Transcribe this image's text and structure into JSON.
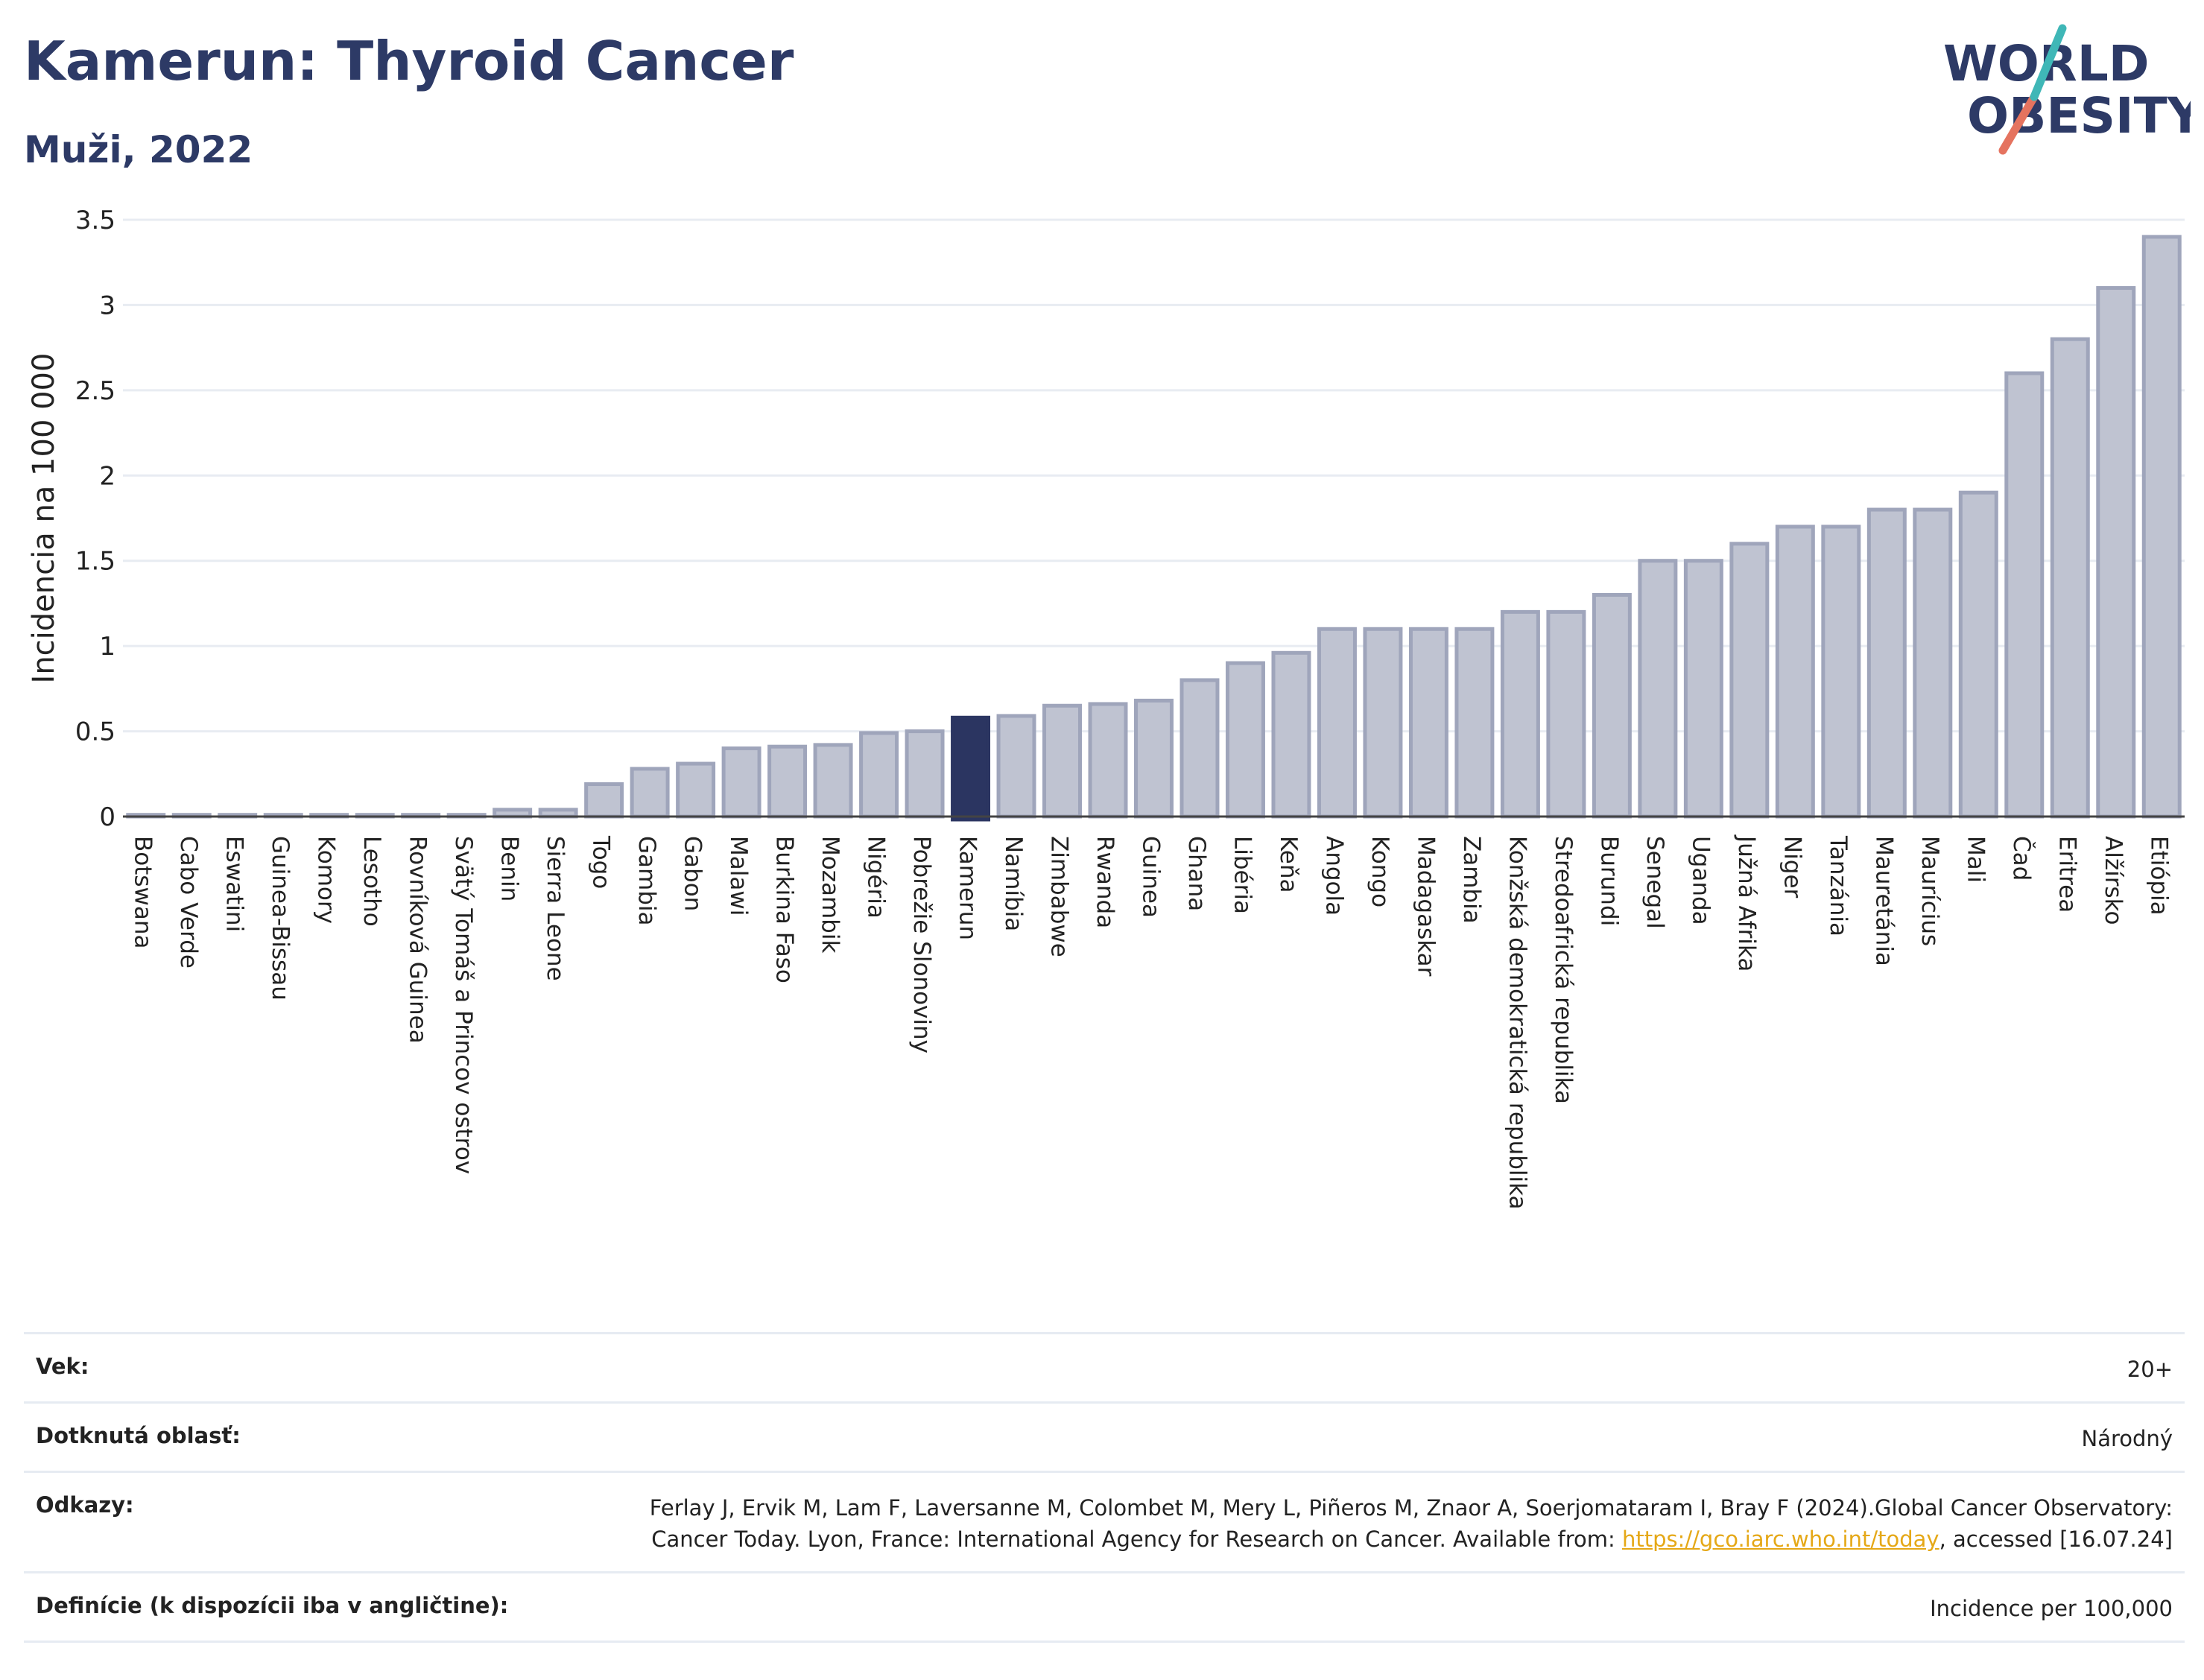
{
  "header": {
    "title": "Kamerun: Thyroid Cancer",
    "subtitle": "Muži, 2022",
    "logo_line1": "WORLD",
    "logo_line2": "OBESITY"
  },
  "chart_data": {
    "type": "bar",
    "title": "Kamerun: Thyroid Cancer",
    "subtitle": "Muži, 2022",
    "ylabel": "Incidencia na 100 000",
    "xlabel": "",
    "ylim": [
      0,
      3.5
    ],
    "yticks": [
      "0",
      "0.5",
      "1",
      "1.5",
      "2",
      "2.5",
      "3",
      "3.5"
    ],
    "highlight": "Kamerun",
    "colors": {
      "bar": "#bfc3d1",
      "bar_edge": "#9fa5bb",
      "highlight": "#2b3561",
      "grid": "#e8ecf2"
    },
    "categories": [
      "Botswana",
      "Cabo Verde",
      "Eswatini",
      "Guinea-Bissau",
      "Komory",
      "Lesotho",
      "Rovníková Guinea",
      "Svätý Tomáš a Princov ostrov",
      "Benin",
      "Sierra Leone",
      "Togo",
      "Gambia",
      "Gabon",
      "Malawi",
      "Burkina Faso",
      "Mozambik",
      "Nigéria",
      "Pobrežie Slonoviny",
      "Kamerun",
      "Namíbia",
      "Zimbabwe",
      "Rwanda",
      "Guinea",
      "Ghana",
      "Libéria",
      "Keňa",
      "Angola",
      "Kongo",
      "Madagaskar",
      "Zambia",
      "Konžská demokratická republika",
      "Stredoafrická republika",
      "Burundi",
      "Senegal",
      "Uganda",
      "Južná Afrika",
      "Niger",
      "Tanzánia",
      "Mauretánia",
      "Maurícius",
      "Mali",
      "Čad",
      "Eritrea",
      "Alžírsko",
      "Etiópia"
    ],
    "values": [
      0.01,
      0.01,
      0.01,
      0.01,
      0.01,
      0.01,
      0.01,
      0.01,
      0.04,
      0.04,
      0.19,
      0.28,
      0.31,
      0.4,
      0.41,
      0.42,
      0.49,
      0.5,
      0.58,
      0.59,
      0.65,
      0.66,
      0.68,
      0.8,
      0.9,
      0.96,
      1.1,
      1.1,
      1.1,
      1.1,
      1.2,
      1.2,
      1.3,
      1.5,
      1.5,
      1.6,
      1.7,
      1.7,
      1.8,
      1.8,
      1.9,
      2.6,
      2.8,
      3.1,
      3.4
    ]
  },
  "info": {
    "age_label": "Vek:",
    "age_value": "20+",
    "area_label": "Dotknutá oblasť:",
    "area_value": "Národný",
    "refs_label": "Odkazy:",
    "refs_text": "Ferlay J, Ervik M, Lam F, Laversanne M, Colombet M, Mery L, Piñeros M, Znaor A, Soerjomataram I, Bray F (2024).Global Cancer Observatory: Cancer Today. Lyon, France: International Agency for Research on Cancer. Available from: ",
    "refs_link": "https://gco.iarc.who.int/today",
    "refs_tail": ", accessed [16.07.24]",
    "def_label": "Definície (k dispozícii iba v angličtine):",
    "def_value": "Incidence per 100,000"
  }
}
